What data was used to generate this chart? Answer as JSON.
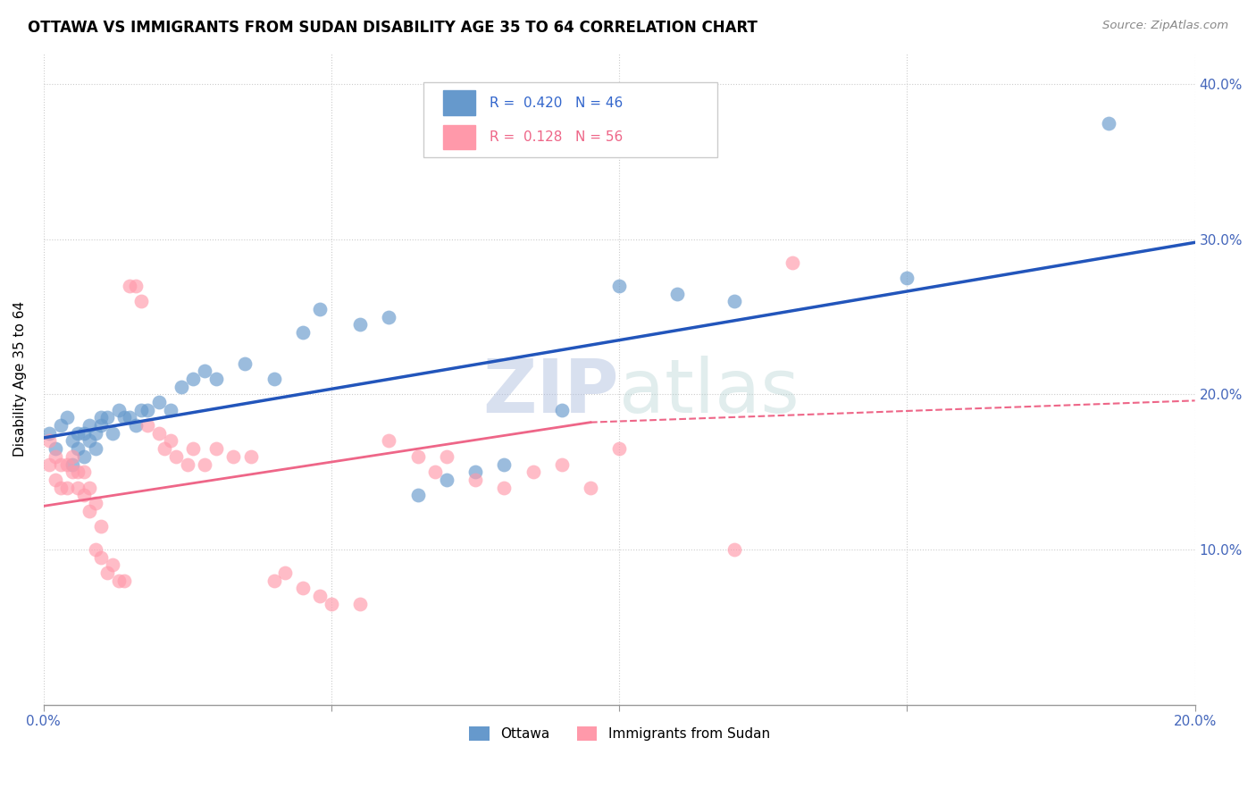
{
  "title": "OTTAWA VS IMMIGRANTS FROM SUDAN DISABILITY AGE 35 TO 64 CORRELATION CHART",
  "source": "Source: ZipAtlas.com",
  "ylabel": "Disability Age 35 to 64",
  "legend_ottawa": "R =  0.420   N = 46",
  "legend_sudan": "R =  0.128   N = 56",
  "ottawa_color": "#6699CC",
  "sudan_color": "#FF99AA",
  "ottawa_line_color": "#2255BB",
  "sudan_line_color": "#EE6688",
  "watermark_zip": "ZIP",
  "watermark_atlas": "atlas",
  "ottawa_points": [
    [
      0.001,
      0.175
    ],
    [
      0.002,
      0.165
    ],
    [
      0.003,
      0.18
    ],
    [
      0.004,
      0.185
    ],
    [
      0.005,
      0.155
    ],
    [
      0.005,
      0.17
    ],
    [
      0.006,
      0.165
    ],
    [
      0.006,
      0.175
    ],
    [
      0.007,
      0.16
    ],
    [
      0.007,
      0.175
    ],
    [
      0.008,
      0.17
    ],
    [
      0.008,
      0.18
    ],
    [
      0.009,
      0.165
    ],
    [
      0.009,
      0.175
    ],
    [
      0.01,
      0.18
    ],
    [
      0.01,
      0.185
    ],
    [
      0.011,
      0.185
    ],
    [
      0.012,
      0.175
    ],
    [
      0.013,
      0.19
    ],
    [
      0.014,
      0.185
    ],
    [
      0.015,
      0.185
    ],
    [
      0.016,
      0.18
    ],
    [
      0.017,
      0.19
    ],
    [
      0.018,
      0.19
    ],
    [
      0.02,
      0.195
    ],
    [
      0.022,
      0.19
    ],
    [
      0.024,
      0.205
    ],
    [
      0.026,
      0.21
    ],
    [
      0.028,
      0.215
    ],
    [
      0.03,
      0.21
    ],
    [
      0.035,
      0.22
    ],
    [
      0.04,
      0.21
    ],
    [
      0.045,
      0.24
    ],
    [
      0.048,
      0.255
    ],
    [
      0.055,
      0.245
    ],
    [
      0.06,
      0.25
    ],
    [
      0.065,
      0.135
    ],
    [
      0.07,
      0.145
    ],
    [
      0.075,
      0.15
    ],
    [
      0.08,
      0.155
    ],
    [
      0.09,
      0.19
    ],
    [
      0.1,
      0.27
    ],
    [
      0.11,
      0.265
    ],
    [
      0.12,
      0.26
    ],
    [
      0.15,
      0.275
    ],
    [
      0.185,
      0.375
    ]
  ],
  "sudan_points": [
    [
      0.001,
      0.17
    ],
    [
      0.001,
      0.155
    ],
    [
      0.002,
      0.16
    ],
    [
      0.002,
      0.145
    ],
    [
      0.003,
      0.155
    ],
    [
      0.003,
      0.14
    ],
    [
      0.004,
      0.155
    ],
    [
      0.004,
      0.14
    ],
    [
      0.005,
      0.16
    ],
    [
      0.005,
      0.15
    ],
    [
      0.006,
      0.14
    ],
    [
      0.006,
      0.15
    ],
    [
      0.007,
      0.15
    ],
    [
      0.007,
      0.135
    ],
    [
      0.008,
      0.14
    ],
    [
      0.008,
      0.125
    ],
    [
      0.009,
      0.13
    ],
    [
      0.009,
      0.1
    ],
    [
      0.01,
      0.115
    ],
    [
      0.01,
      0.095
    ],
    [
      0.011,
      0.085
    ],
    [
      0.012,
      0.09
    ],
    [
      0.013,
      0.08
    ],
    [
      0.014,
      0.08
    ],
    [
      0.015,
      0.27
    ],
    [
      0.016,
      0.27
    ],
    [
      0.017,
      0.26
    ],
    [
      0.018,
      0.18
    ],
    [
      0.02,
      0.175
    ],
    [
      0.021,
      0.165
    ],
    [
      0.022,
      0.17
    ],
    [
      0.023,
      0.16
    ],
    [
      0.025,
      0.155
    ],
    [
      0.026,
      0.165
    ],
    [
      0.028,
      0.155
    ],
    [
      0.03,
      0.165
    ],
    [
      0.033,
      0.16
    ],
    [
      0.036,
      0.16
    ],
    [
      0.04,
      0.08
    ],
    [
      0.042,
      0.085
    ],
    [
      0.045,
      0.075
    ],
    [
      0.048,
      0.07
    ],
    [
      0.05,
      0.065
    ],
    [
      0.055,
      0.065
    ],
    [
      0.06,
      0.17
    ],
    [
      0.065,
      0.16
    ],
    [
      0.068,
      0.15
    ],
    [
      0.07,
      0.16
    ],
    [
      0.075,
      0.145
    ],
    [
      0.08,
      0.14
    ],
    [
      0.085,
      0.15
    ],
    [
      0.09,
      0.155
    ],
    [
      0.095,
      0.14
    ],
    [
      0.1,
      0.165
    ],
    [
      0.12,
      0.1
    ],
    [
      0.13,
      0.285
    ]
  ],
  "xlim": [
    0.0,
    0.2
  ],
  "ylim": [
    0.0,
    0.42
  ],
  "ytick_positions": [
    0.1,
    0.2,
    0.3,
    0.4
  ],
  "ytick_labels": [
    "10.0%",
    "20.0%",
    "30.0%",
    "40.0%"
  ],
  "xtick_positions": [
    0.0,
    0.05,
    0.1,
    0.15,
    0.2
  ],
  "ottawa_line": [
    [
      0.0,
      0.172
    ],
    [
      0.2,
      0.298
    ]
  ],
  "sudan_line_solid": [
    [
      0.0,
      0.128
    ],
    [
      0.095,
      0.182
    ]
  ],
  "sudan_line_dashed": [
    [
      0.095,
      0.182
    ],
    [
      0.2,
      0.196
    ]
  ]
}
